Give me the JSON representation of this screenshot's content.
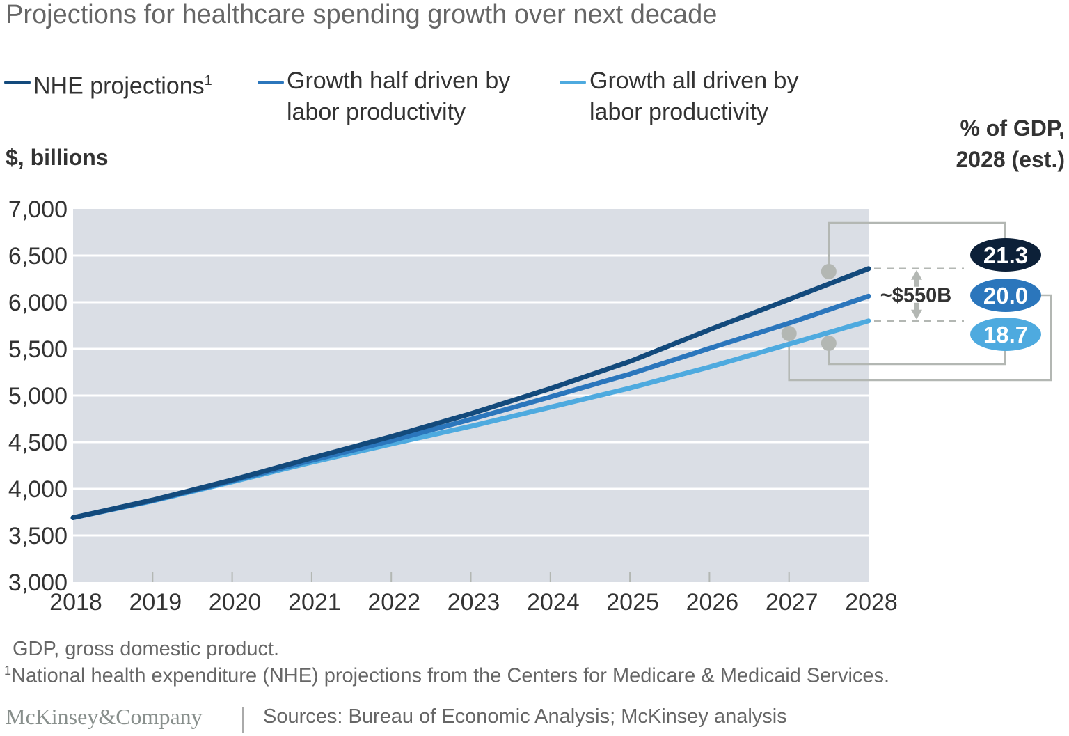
{
  "chart_data": {
    "type": "line",
    "title": "Projections for healthcare spending growth over next decade",
    "ylabel": "$, billions",
    "xlabel": "",
    "ylim": [
      3000,
      7000
    ],
    "xlim": [
      2018,
      2028
    ],
    "yticks": [
      "3,000",
      "3,500",
      "4,000",
      "4,500",
      "5,000",
      "5,500",
      "6,000",
      "6,500",
      "7,000"
    ],
    "ytick_values": [
      3000,
      3500,
      4000,
      4500,
      5000,
      5500,
      6000,
      6500,
      7000
    ],
    "x": [
      2018,
      2019,
      2020,
      2021,
      2022,
      2023,
      2024,
      2025,
      2026,
      2027,
      2028
    ],
    "xticks": [
      "2018",
      "2019",
      "2020",
      "2021",
      "2022",
      "2023",
      "2024",
      "2025",
      "2026",
      "2027",
      "2028"
    ],
    "grid": true,
    "legend_position": "top",
    "series": [
      {
        "name": "NHE projections",
        "superscript": "1",
        "color": "#134a7c",
        "values": [
          3690,
          3880,
          4095,
          4330,
          4560,
          4805,
          5075,
          5365,
          5705,
          6030,
          6360
        ]
      },
      {
        "name": "Growth half driven by labor productivity",
        "line1": "Growth half driven by",
        "line2": "labor productivity",
        "color": "#2b76bc",
        "values": [
          3690,
          3875,
          4085,
          4305,
          4515,
          4745,
          4985,
          5230,
          5505,
          5775,
          6065
        ]
      },
      {
        "name": "Growth all driven by labor productivity",
        "line1": "Growth all driven by",
        "line2": "labor productivity",
        "color": "#4eaadf",
        "values": [
          3690,
          3870,
          4075,
          4285,
          4480,
          4670,
          4875,
          5080,
          5305,
          5550,
          5800
        ]
      }
    ],
    "annotations": {
      "gap_label": "~$550B",
      "gdp_header_line1": "% of GDP,",
      "gdp_header_line2": "2028 (est.)",
      "gdp_badges": [
        {
          "value": "21.3",
          "color": "#0c2038"
        },
        {
          "value": "20.0",
          "color": "#2b76bc"
        },
        {
          "value": "18.7",
          "color": "#4eaadf"
        }
      ]
    }
  },
  "footnotes": {
    "abbrev": "GDP, gross domestic product.",
    "note1_marker": "1",
    "note1": "National health expenditure (NHE) projections from the Centers for Medicare & Medicaid Services."
  },
  "footer": {
    "logo": "McKinsey&Company",
    "sources": "Sources: Bureau of Economic Analysis; McKinsey analysis"
  }
}
